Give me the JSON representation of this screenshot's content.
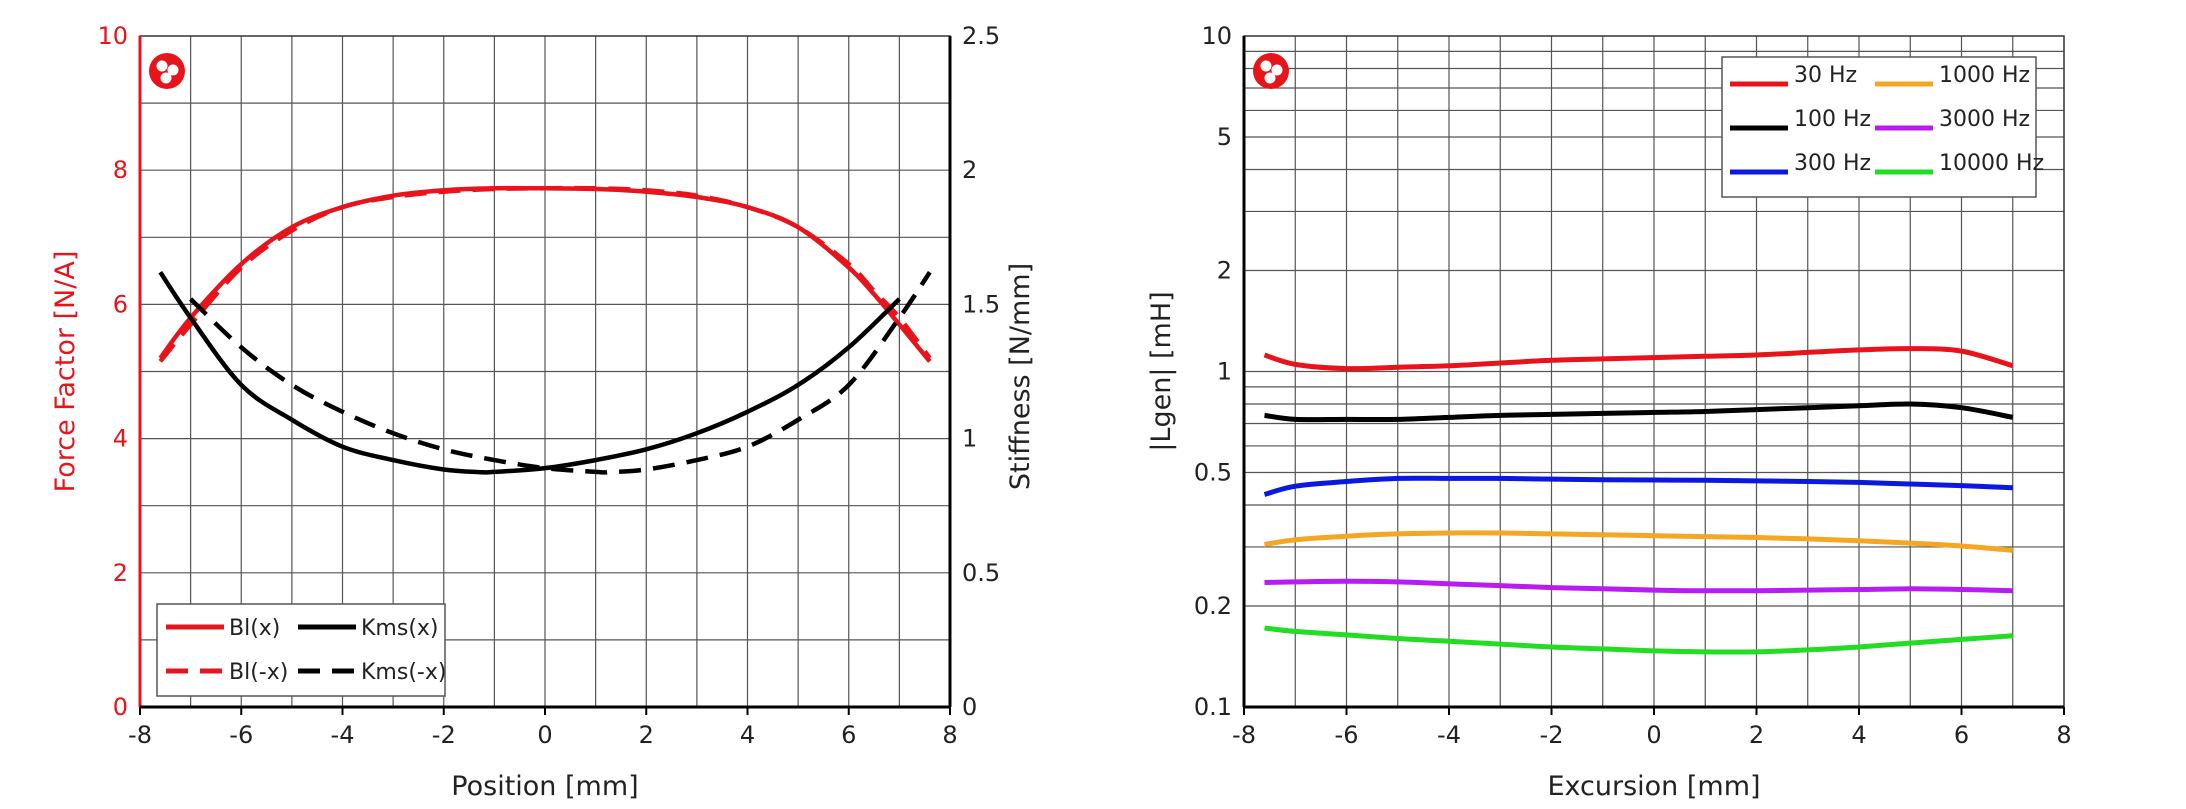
{
  "chart_data": [
    {
      "type": "line",
      "xlabel": "Position [mm]",
      "ylabel_left": "Force Factor [N/A]",
      "ylabel_right": "Stiffness [N/mm]",
      "xlim": [
        -8,
        8
      ],
      "ylim_left": [
        0,
        10
      ],
      "ylim_right": [
        0,
        2.5
      ],
      "x_ticks": [
        "-8",
        "-6",
        "-4",
        "-2",
        "0",
        "2",
        "4",
        "6",
        "8"
      ],
      "y_left_ticks": [
        "0",
        "2",
        "4",
        "6",
        "8",
        "10"
      ],
      "y_right_ticks": [
        "0",
        "0.5",
        "1",
        "1.5",
        "2",
        "2.5"
      ],
      "legend_position": "bottom-left",
      "colors": {
        "left_axis": "#e8141b",
        "bl": "#e8141b",
        "kms": "#000000"
      },
      "series": [
        {
          "name": "Bl(x)",
          "axis": "left",
          "style": "solid",
          "color": "#e8141b",
          "x": [
            -7.6,
            -7,
            -6,
            -5,
            -4,
            -3,
            -2,
            -1,
            0,
            1,
            2,
            3,
            4,
            5,
            6,
            6.5,
            7,
            7.6
          ],
          "y": [
            5.2,
            5.8,
            6.6,
            7.15,
            7.45,
            7.62,
            7.7,
            7.73,
            7.73,
            7.72,
            7.68,
            7.6,
            7.45,
            7.15,
            6.55,
            6.15,
            5.7,
            5.15
          ]
        },
        {
          "name": "Bl(-x)",
          "axis": "left",
          "style": "dashed",
          "color": "#e8141b",
          "x": [
            -7.6,
            -7,
            -6,
            -5,
            -4,
            -3,
            -2,
            -1,
            0,
            1,
            2,
            3,
            4,
            5,
            6,
            6.5,
            7,
            7.6
          ],
          "y": [
            5.15,
            5.7,
            6.55,
            7.1,
            7.45,
            7.6,
            7.68,
            7.72,
            7.73,
            7.73,
            7.7,
            7.62,
            7.45,
            7.15,
            6.6,
            6.2,
            5.8,
            5.2
          ]
        },
        {
          "name": "Kms(x)",
          "axis": "right",
          "style": "solid",
          "color": "#000000",
          "x": [
            -7.6,
            -7,
            -6,
            -5,
            -4,
            -3,
            -2,
            -1.3,
            -1,
            0,
            1,
            2,
            3,
            4,
            5,
            6,
            7
          ],
          "y": [
            1.62,
            1.45,
            1.2,
            1.07,
            0.97,
            0.92,
            0.885,
            0.875,
            0.876,
            0.89,
            0.92,
            0.96,
            1.02,
            1.1,
            1.2,
            1.34,
            1.52
          ]
        },
        {
          "name": "Kms(-x)",
          "axis": "right",
          "style": "dashed",
          "color": "#000000",
          "x": [
            -7,
            -6,
            -5,
            -4,
            -3,
            -2,
            -1,
            0,
            1,
            1.3,
            2,
            3,
            4,
            5,
            6,
            7,
            7.6
          ],
          "y": [
            1.52,
            1.34,
            1.2,
            1.1,
            1.02,
            0.96,
            0.92,
            0.89,
            0.876,
            0.875,
            0.885,
            0.92,
            0.97,
            1.07,
            1.2,
            1.45,
            1.62
          ]
        }
      ]
    },
    {
      "type": "line",
      "yscale": "log",
      "xlabel": "Excursion [mm]",
      "ylabel": "|Lgen| [mH]",
      "xlim": [
        -8,
        8
      ],
      "ylim": [
        0.1,
        10
      ],
      "x_ticks": [
        "-8",
        "-6",
        "-4",
        "-2",
        "0",
        "2",
        "4",
        "6",
        "8"
      ],
      "y_ticks": [
        "0.1",
        "0.2",
        "0.5",
        "1",
        "2",
        "5",
        "10"
      ],
      "legend_position": "top-right",
      "series": [
        {
          "name": "30 Hz",
          "color": "#e8141b",
          "x": [
            -7.6,
            -7,
            -6,
            -5,
            -4,
            -3,
            -2,
            -1,
            0,
            1,
            2,
            3,
            4,
            5,
            6,
            7
          ],
          "y": [
            1.12,
            1.05,
            1.02,
            1.03,
            1.04,
            1.06,
            1.08,
            1.09,
            1.1,
            1.11,
            1.12,
            1.14,
            1.16,
            1.17,
            1.15,
            1.04
          ]
        },
        {
          "name": "100 Hz",
          "color": "#000000",
          "x": [
            -7.6,
            -7,
            -6,
            -5,
            -4,
            -3,
            -2,
            -1,
            0,
            1,
            2,
            3,
            4,
            5,
            6,
            7
          ],
          "y": [
            0.74,
            0.72,
            0.72,
            0.72,
            0.73,
            0.74,
            0.745,
            0.75,
            0.755,
            0.76,
            0.77,
            0.78,
            0.79,
            0.8,
            0.78,
            0.73
          ]
        },
        {
          "name": "300 Hz",
          "color": "#0a18e0",
          "x": [
            -7.6,
            -7,
            -6,
            -5,
            -4,
            -3,
            -2,
            -1,
            0,
            1,
            2,
            3,
            4,
            5,
            6,
            7
          ],
          "y": [
            0.43,
            0.455,
            0.47,
            0.48,
            0.48,
            0.48,
            0.478,
            0.476,
            0.475,
            0.474,
            0.472,
            0.47,
            0.467,
            0.462,
            0.457,
            0.45
          ]
        },
        {
          "name": "1000 Hz",
          "color": "#f5a623",
          "x": [
            -7.6,
            -7,
            -6,
            -5,
            -4,
            -3,
            -2,
            -1,
            0,
            1,
            2,
            3,
            4,
            5,
            6,
            7
          ],
          "y": [
            0.305,
            0.315,
            0.323,
            0.328,
            0.33,
            0.33,
            0.328,
            0.326,
            0.324,
            0.322,
            0.32,
            0.317,
            0.313,
            0.308,
            0.302,
            0.293
          ]
        },
        {
          "name": "3000 Hz",
          "color": "#b81cf0",
          "x": [
            -7.6,
            -7,
            -6,
            -5,
            -4,
            -3,
            -2,
            -1,
            0,
            1,
            2,
            3,
            4,
            5,
            6,
            7
          ],
          "y": [
            0.235,
            0.236,
            0.237,
            0.236,
            0.233,
            0.23,
            0.227,
            0.225,
            0.223,
            0.222,
            0.222,
            0.223,
            0.224,
            0.225,
            0.224,
            0.222
          ]
        },
        {
          "name": "10000 Hz",
          "color": "#22dd22",
          "x": [
            -7.6,
            -7,
            -6,
            -5,
            -4,
            -3,
            -2,
            -1,
            0,
            1,
            2,
            3,
            4,
            5,
            6,
            7
          ],
          "y": [
            0.172,
            0.168,
            0.164,
            0.16,
            0.157,
            0.154,
            0.151,
            0.149,
            0.147,
            0.146,
            0.146,
            0.148,
            0.151,
            0.155,
            0.159,
            0.163
          ]
        }
      ]
    }
  ]
}
